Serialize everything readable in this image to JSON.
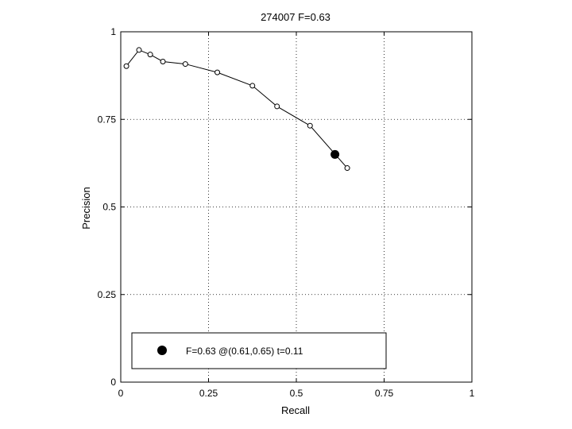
{
  "chart_data": {
    "type": "line",
    "title": "274007 F=0.63",
    "xlabel": "Recall",
    "ylabel": "Precision",
    "xlim": [
      0,
      1
    ],
    "ylim": [
      0,
      1
    ],
    "xticks": [
      0,
      0.25,
      0.5,
      0.75,
      1
    ],
    "yticks": [
      0,
      0.25,
      0.5,
      0.75,
      1
    ],
    "xtick_labels": [
      "0",
      "0.25",
      "0.5",
      "0.75",
      "1"
    ],
    "ytick_labels": [
      "0",
      "0.25",
      "0.5",
      "0.75",
      "1"
    ],
    "grid": true,
    "series": [
      {
        "x": [
          0.016,
          0.052,
          0.084,
          0.12,
          0.184,
          0.275,
          0.375,
          0.445,
          0.539,
          0.645
        ],
        "y": [
          0.902,
          0.948,
          0.935,
          0.915,
          0.908,
          0.884,
          0.846,
          0.787,
          0.732,
          0.611
        ],
        "marker": "open-circle",
        "color": "#000000"
      }
    ],
    "highlight_point": {
      "x": 0.61,
      "y": 0.65,
      "marker": "filled-circle",
      "color": "#000000"
    },
    "legend": {
      "placement": "bottom-left",
      "entries": [
        "F=0.63 @(0.61,0.65) t=0.11"
      ]
    }
  }
}
